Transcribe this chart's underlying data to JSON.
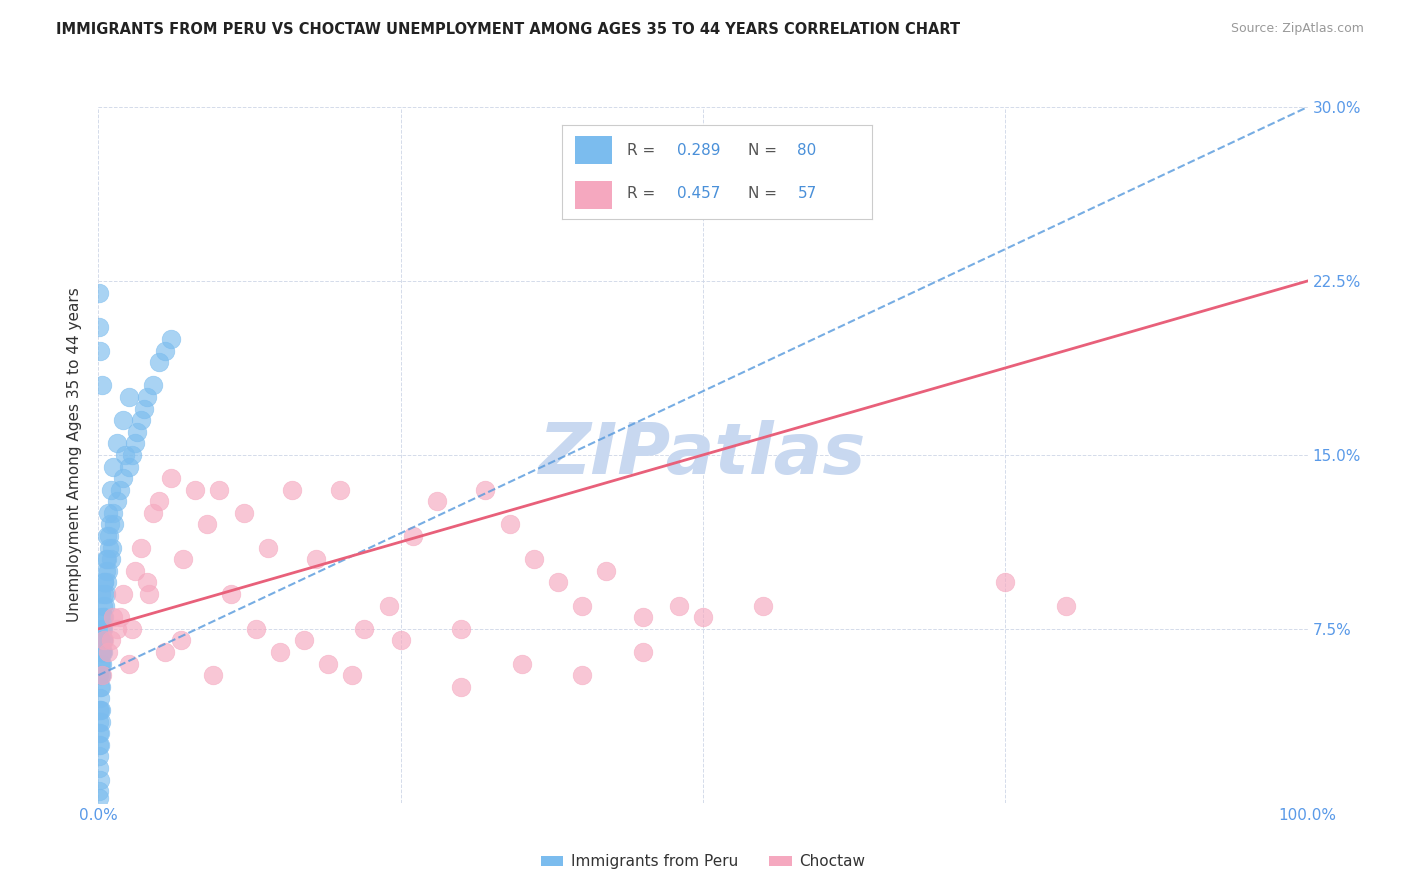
{
  "title": "IMMIGRANTS FROM PERU VS CHOCTAW UNEMPLOYMENT AMONG AGES 35 TO 44 YEARS CORRELATION CHART",
  "source": "Source: ZipAtlas.com",
  "ylabel": "Unemployment Among Ages 35 to 44 years",
  "peru_color": "#7bbcee",
  "peru_line_color": "#5599dd",
  "choctaw_color": "#f5a8bf",
  "choctaw_line_color": "#e8607a",
  "peru_R": 0.289,
  "peru_N": 80,
  "choctaw_R": 0.457,
  "choctaw_N": 57,
  "watermark": "ZIPatlas",
  "watermark_color": "#c8d8f0",
  "legend_r_color": "#333333",
  "legend_val_color": "#4a90d9",
  "xlim": [
    0,
    100
  ],
  "ylim": [
    0,
    30
  ],
  "ytick_vals": [
    0,
    7.5,
    15.0,
    22.5,
    30.0
  ],
  "ytick_labels_right": [
    "",
    "7.5%",
    "15.0%",
    "22.5%",
    "30.0%"
  ],
  "xtick_vals": [
    0,
    25,
    50,
    75,
    100
  ],
  "xtick_labels": [
    "0.0%",
    "",
    "",
    "",
    "100.0%"
  ],
  "peru_points_x": [
    0.05,
    0.05,
    0.05,
    0.08,
    0.08,
    0.1,
    0.1,
    0.12,
    0.12,
    0.15,
    0.15,
    0.18,
    0.2,
    0.2,
    0.22,
    0.25,
    0.28,
    0.3,
    0.32,
    0.35,
    0.38,
    0.4,
    0.42,
    0.45,
    0.48,
    0.5,
    0.55,
    0.6,
    0.65,
    0.7,
    0.75,
    0.8,
    0.85,
    0.9,
    0.95,
    1.0,
    1.1,
    1.2,
    1.3,
    1.5,
    1.8,
    2.0,
    2.2,
    2.5,
    2.8,
    3.0,
    3.2,
    3.5,
    3.8,
    4.0,
    4.5,
    5.0,
    5.5,
    6.0,
    0.05,
    0.05,
    0.08,
    0.1,
    0.12,
    0.15,
    0.18,
    0.2,
    0.25,
    0.3,
    0.35,
    0.4,
    0.5,
    0.6,
    0.7,
    0.8,
    1.0,
    1.2,
    1.5,
    2.0,
    2.5,
    0.05,
    0.08,
    0.15,
    0.3,
    0.05
  ],
  "peru_points_y": [
    4.0,
    3.5,
    2.5,
    3.0,
    5.5,
    4.0,
    7.0,
    4.5,
    6.0,
    5.0,
    8.0,
    5.5,
    6.0,
    9.0,
    7.0,
    5.5,
    6.5,
    7.5,
    6.0,
    7.0,
    8.5,
    7.0,
    6.5,
    9.0,
    8.0,
    9.5,
    8.5,
    10.0,
    9.0,
    9.5,
    10.5,
    10.0,
    11.0,
    11.5,
    12.0,
    10.5,
    11.0,
    12.5,
    12.0,
    13.0,
    13.5,
    14.0,
    15.0,
    14.5,
    15.0,
    15.5,
    16.0,
    16.5,
    17.0,
    17.5,
    18.0,
    19.0,
    19.5,
    20.0,
    1.5,
    0.5,
    2.0,
    1.0,
    3.0,
    2.5,
    4.0,
    3.5,
    5.0,
    6.5,
    7.5,
    8.0,
    9.5,
    10.5,
    11.5,
    12.5,
    13.5,
    14.5,
    15.5,
    16.5,
    17.5,
    22.0,
    20.5,
    19.5,
    18.0,
    0.2
  ],
  "choctaw_points_x": [
    0.3,
    0.5,
    0.8,
    1.2,
    1.5,
    2.0,
    2.5,
    3.0,
    3.5,
    4.0,
    4.5,
    5.0,
    6.0,
    7.0,
    8.0,
    9.0,
    10.0,
    12.0,
    14.0,
    16.0,
    18.0,
    20.0,
    22.0,
    24.0,
    26.0,
    28.0,
    30.0,
    32.0,
    34.0,
    36.0,
    38.0,
    40.0,
    42.0,
    45.0,
    48.0,
    50.0,
    55.0,
    1.0,
    1.8,
    2.8,
    4.2,
    5.5,
    6.8,
    9.5,
    11.0,
    13.0,
    15.0,
    17.0,
    19.0,
    21.0,
    25.0,
    30.0,
    35.0,
    40.0,
    45.0,
    75.0,
    80.0
  ],
  "choctaw_points_y": [
    5.5,
    7.0,
    6.5,
    8.0,
    7.5,
    9.0,
    6.0,
    10.0,
    11.0,
    9.5,
    12.5,
    13.0,
    14.0,
    10.5,
    13.5,
    12.0,
    13.5,
    12.5,
    11.0,
    13.5,
    10.5,
    13.5,
    7.5,
    8.5,
    11.5,
    13.0,
    7.5,
    13.5,
    12.0,
    10.5,
    9.5,
    8.5,
    10.0,
    8.0,
    8.5,
    8.0,
    8.5,
    7.0,
    8.0,
    7.5,
    9.0,
    6.5,
    7.0,
    5.5,
    9.0,
    7.5,
    6.5,
    7.0,
    6.0,
    5.5,
    7.0,
    5.0,
    6.0,
    5.5,
    6.5,
    9.5,
    8.5
  ],
  "peru_line_x0": 0,
  "peru_line_y0": 5.5,
  "peru_line_x1": 100,
  "peru_line_y1": 30.0,
  "choctaw_line_x0": 0,
  "choctaw_line_y0": 7.5,
  "choctaw_line_x1": 100,
  "choctaw_line_y1": 22.5
}
